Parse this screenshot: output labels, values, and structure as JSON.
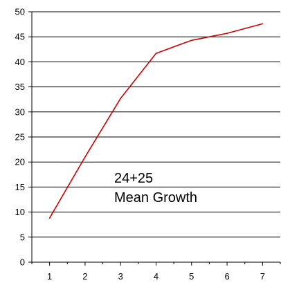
{
  "chart_data": {
    "type": "line",
    "title": "",
    "xlabel": "",
    "ylabel": "",
    "x": [
      1,
      2,
      3,
      4,
      5,
      6,
      7
    ],
    "x_tick_labels": [
      "1",
      "2",
      "3",
      "4",
      "5",
      "6",
      "7"
    ],
    "y_tick_labels": [
      "0",
      "5",
      "10",
      "15",
      "20",
      "25",
      "30",
      "35",
      "40",
      "45",
      "50"
    ],
    "ylim": [
      0,
      50
    ],
    "xlim": [
      0.5,
      7.5
    ],
    "grid": "horizontal",
    "legend": "none",
    "series": [
      {
        "values": [
          8.8,
          21.0,
          32.7,
          41.7,
          44.3,
          45.7,
          47.6
        ],
        "color": "#cc0000"
      }
    ],
    "annotations": [
      "24+25",
      "Mean Growth"
    ]
  }
}
